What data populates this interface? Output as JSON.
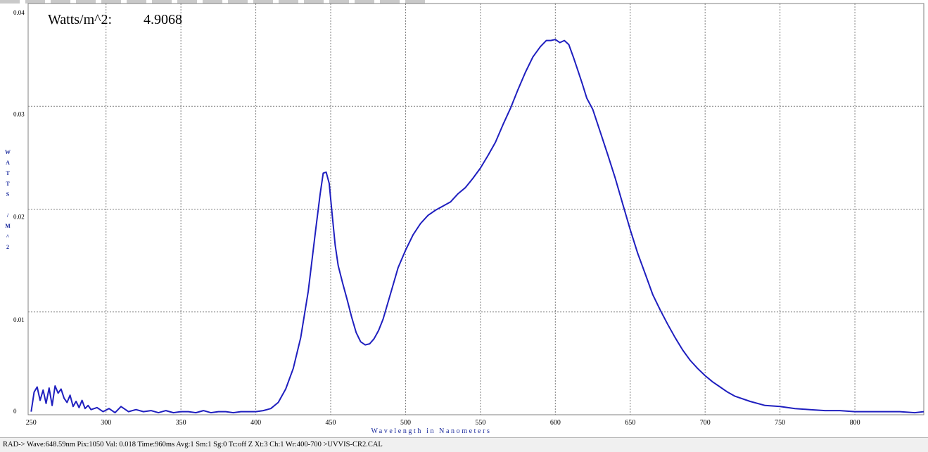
{
  "readout": {
    "label": "Watts/m^2:",
    "value": "4.9068"
  },
  "status_bar": {
    "text": "RAD-> Wave:648.59nm  Pix:1050  Val:  0.018  Time:960ms  Avg:1  Sm:1  Sg:0  Tc:off  Z  Xt:3  Ch:1  Wr:400-700 >UVVIS-CR2.CAL"
  },
  "colors": {
    "series": "#1f1fbf",
    "grid": "#808080",
    "axis_label": "#1a2a9c"
  },
  "chart_data": {
    "type": "line",
    "title": "",
    "xlabel": "Wavelength in Nanometers",
    "ylabel": "WATTS/M^2",
    "xlim": [
      248,
      846
    ],
    "ylim": [
      0,
      0.04
    ],
    "x_ticks": [
      250,
      300,
      350,
      400,
      450,
      500,
      550,
      600,
      650,
      700,
      750,
      800
    ],
    "x_tick_labels": [
      "250",
      "300",
      "350",
      "400",
      "450",
      "500",
      "550",
      "600",
      "650",
      "700",
      "750",
      "800"
    ],
    "y_ticks": [
      0,
      0.01,
      0.02,
      0.03,
      0.04
    ],
    "y_tick_labels": [
      "0",
      "0.01",
      "0.02",
      "0.03",
      "0.04"
    ],
    "grid": true,
    "legend": "none",
    "series": [
      {
        "x": [
          250,
          252,
          254,
          256,
          258,
          260,
          262,
          264,
          266,
          268,
          270,
          272,
          274,
          276,
          278,
          280,
          282,
          284,
          286,
          288,
          290,
          294,
          298,
          302,
          306,
          310,
          315,
          320,
          325,
          330,
          335,
          340,
          345,
          350,
          355,
          360,
          365,
          370,
          375,
          380,
          385,
          390,
          395,
          400,
          405,
          410,
          415,
          420,
          425,
          430,
          435,
          440,
          443,
          445,
          447,
          449,
          451,
          453,
          455,
          458,
          461,
          464,
          467,
          470,
          473,
          476,
          479,
          482,
          485,
          490,
          495,
          500,
          505,
          510,
          515,
          520,
          525,
          530,
          535,
          540,
          545,
          550,
          555,
          560,
          565,
          570,
          575,
          580,
          585,
          590,
          594,
          597,
          600,
          603,
          606,
          609,
          612,
          615,
          618,
          621,
          625,
          630,
          635,
          640,
          645,
          650,
          655,
          660,
          665,
          670,
          675,
          680,
          685,
          690,
          695,
          700,
          705,
          710,
          715,
          720,
          730,
          740,
          750,
          760,
          770,
          780,
          790,
          800,
          810,
          820,
          830,
          840,
          846
        ],
        "y": [
          0.0003,
          0.0022,
          0.0027,
          0.0014,
          0.0024,
          0.0011,
          0.0026,
          0.0009,
          0.0028,
          0.0021,
          0.0025,
          0.0016,
          0.0012,
          0.0019,
          0.0008,
          0.0013,
          0.0007,
          0.0014,
          0.0006,
          0.0009,
          0.0005,
          0.0007,
          0.0003,
          0.0006,
          0.0002,
          0.0008,
          0.0003,
          0.0005,
          0.0003,
          0.0004,
          0.0002,
          0.0004,
          0.0002,
          0.0003,
          0.0003,
          0.0002,
          0.0004,
          0.0002,
          0.0003,
          0.0003,
          0.0002,
          0.0003,
          0.0003,
          0.0003,
          0.0004,
          0.0006,
          0.0012,
          0.0025,
          0.0045,
          0.0075,
          0.012,
          0.018,
          0.0215,
          0.0235,
          0.0236,
          0.0225,
          0.0195,
          0.0165,
          0.0145,
          0.0128,
          0.0112,
          0.0095,
          0.008,
          0.0071,
          0.0068,
          0.0069,
          0.0074,
          0.0082,
          0.0093,
          0.0118,
          0.0143,
          0.016,
          0.0175,
          0.0186,
          0.0194,
          0.0199,
          0.0203,
          0.0207,
          0.0215,
          0.0221,
          0.023,
          0.024,
          0.0252,
          0.0265,
          0.0282,
          0.0298,
          0.0316,
          0.0333,
          0.0348,
          0.0358,
          0.0364,
          0.0364,
          0.0365,
          0.0362,
          0.0364,
          0.036,
          0.0348,
          0.0335,
          0.0322,
          0.0308,
          0.0297,
          0.0275,
          0.0253,
          0.023,
          0.0205,
          0.018,
          0.0157,
          0.0137,
          0.0117,
          0.0102,
          0.0088,
          0.0075,
          0.0063,
          0.0053,
          0.0045,
          0.0038,
          0.0032,
          0.0027,
          0.0022,
          0.0018,
          0.0013,
          0.0009,
          0.0008,
          0.0006,
          0.0005,
          0.0004,
          0.0004,
          0.0003,
          0.0003,
          0.0003,
          0.0003,
          0.0002,
          0.0003
        ]
      }
    ]
  }
}
